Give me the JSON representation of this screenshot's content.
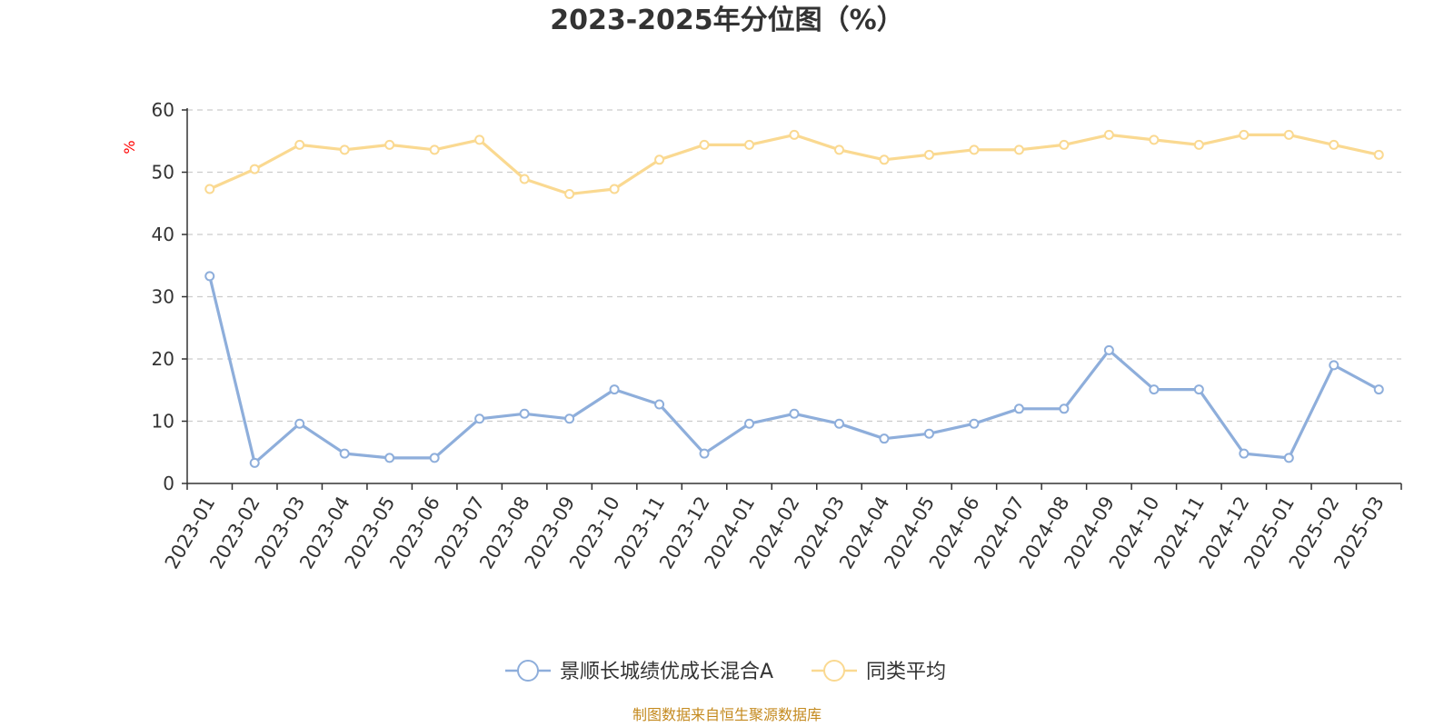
{
  "chart_data": {
    "type": "line",
    "title": "2023-2025年分位图（%）",
    "ylabel": "%",
    "xlabel": "",
    "ylim": [
      0,
      60
    ],
    "yticks": [
      0,
      10,
      20,
      30,
      40,
      50,
      60
    ],
    "grid": true,
    "legend_position": "bottom-center",
    "categories": [
      "2023-01",
      "2023-02",
      "2023-03",
      "2023-04",
      "2023-05",
      "2023-06",
      "2023-07",
      "2023-08",
      "2023-09",
      "2023-10",
      "2023-11",
      "2023-12",
      "2024-01",
      "2024-02",
      "2024-03",
      "2024-04",
      "2024-05",
      "2024-06",
      "2024-07",
      "2024-08",
      "2024-09",
      "2024-10",
      "2024-11",
      "2024-12",
      "2025-01",
      "2025-02",
      "2025-03"
    ],
    "series": [
      {
        "name": "景顺长城绩优成长混合A",
        "color": "#8eaedb",
        "values": [
          33.3,
          3.3,
          9.6,
          4.8,
          4.1,
          4.1,
          10.4,
          11.2,
          10.4,
          15.1,
          12.7,
          4.8,
          9.6,
          11.2,
          9.6,
          7.2,
          8.0,
          9.6,
          12.0,
          12.0,
          21.4,
          15.1,
          15.1,
          4.8,
          4.1,
          19.0,
          15.1
        ]
      },
      {
        "name": "同类平均",
        "color": "#fad991",
        "values": [
          47.3,
          50.5,
          54.4,
          53.6,
          54.4,
          53.6,
          55.2,
          48.9,
          46.5,
          47.3,
          52.0,
          54.4,
          54.4,
          56.0,
          53.6,
          52.0,
          52.8,
          53.6,
          53.6,
          54.4,
          56.0,
          55.2,
          54.4,
          56.0,
          56.0,
          54.4,
          52.8
        ]
      }
    ],
    "source": "制图数据来自恒生聚源数据库",
    "source_color": "#c48a1f",
    "grid_color": "#cccccc",
    "axis_color": "#333333"
  }
}
